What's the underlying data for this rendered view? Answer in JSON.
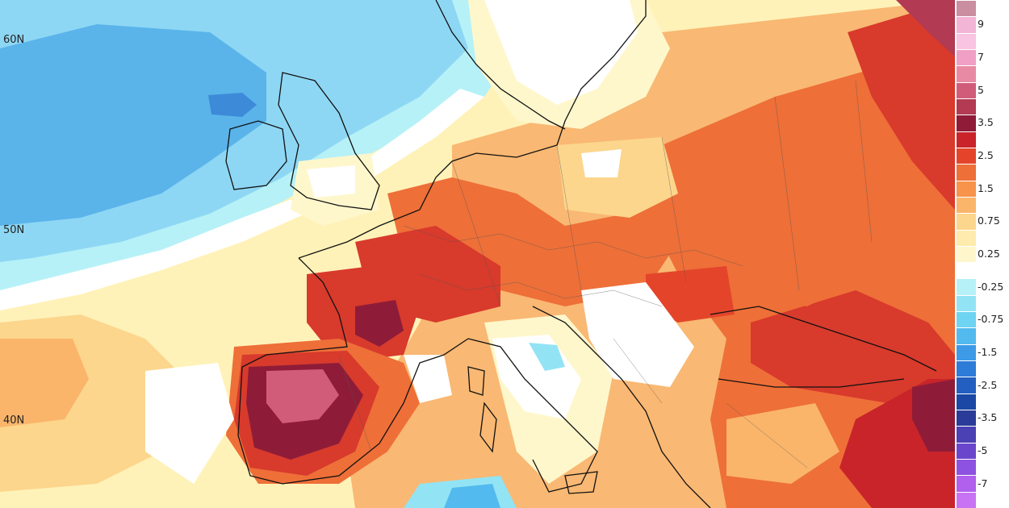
{
  "map": {
    "lat_labels": [
      "60N",
      "50N",
      "40N"
    ],
    "colors": {
      "sea_anomaly_low": "#5ab4ea",
      "sea_anomaly_mid": "#8ed7f4",
      "neutral": "#ffffff",
      "warm_light": "#fff2b8",
      "warm_mid": "#f9b873",
      "warm_high": "#e8623a",
      "hot": "#b52a34",
      "very_hot": "#8b1c3e",
      "extreme": "#d06a92"
    }
  },
  "legend": {
    "bins": [
      {
        "label": "",
        "color": "#c98ea0"
      },
      {
        "label": "9",
        "color": "#f2b5d6"
      },
      {
        "label": "",
        "color": "#f8c4e1"
      },
      {
        "label": "7",
        "color": "#f0a0c4"
      },
      {
        "label": "",
        "color": "#e98aa4"
      },
      {
        "label": "5",
        "color": "#d15c7a"
      },
      {
        "label": "",
        "color": "#b23a52"
      },
      {
        "label": "3.5",
        "color": "#8e1c38"
      },
      {
        "label": "",
        "color": "#c8242a"
      },
      {
        "label": "2.5",
        "color": "#e4452a"
      },
      {
        "label": "",
        "color": "#ee6f38"
      },
      {
        "label": "1.5",
        "color": "#f7934b"
      },
      {
        "label": "",
        "color": "#fab56b"
      },
      {
        "label": "0.75",
        "color": "#fcd68d"
      },
      {
        "label": "",
        "color": "#feebad"
      },
      {
        "label": "0.25",
        "color": "#fff7cc"
      },
      {
        "label": "",
        "color": "#ffffff"
      },
      {
        "label": "-0.25",
        "color": "#b6f1f7"
      },
      {
        "label": "",
        "color": "#92e4f5"
      },
      {
        "label": "-0.75",
        "color": "#6fd3f2"
      },
      {
        "label": "",
        "color": "#52baee"
      },
      {
        "label": "-1.5",
        "color": "#3d9ae6"
      },
      {
        "label": "",
        "color": "#2d7cd8"
      },
      {
        "label": "-2.5",
        "color": "#225fc0"
      },
      {
        "label": "",
        "color": "#1b48a4"
      },
      {
        "label": "-3.5",
        "color": "#2a3c98"
      },
      {
        "label": "",
        "color": "#4b40b4"
      },
      {
        "label": "-5",
        "color": "#6a46cc"
      },
      {
        "label": "",
        "color": "#8e52e0"
      },
      {
        "label": "-7",
        "color": "#b060ec"
      },
      {
        "label": "",
        "color": "#c872f4"
      }
    ]
  }
}
